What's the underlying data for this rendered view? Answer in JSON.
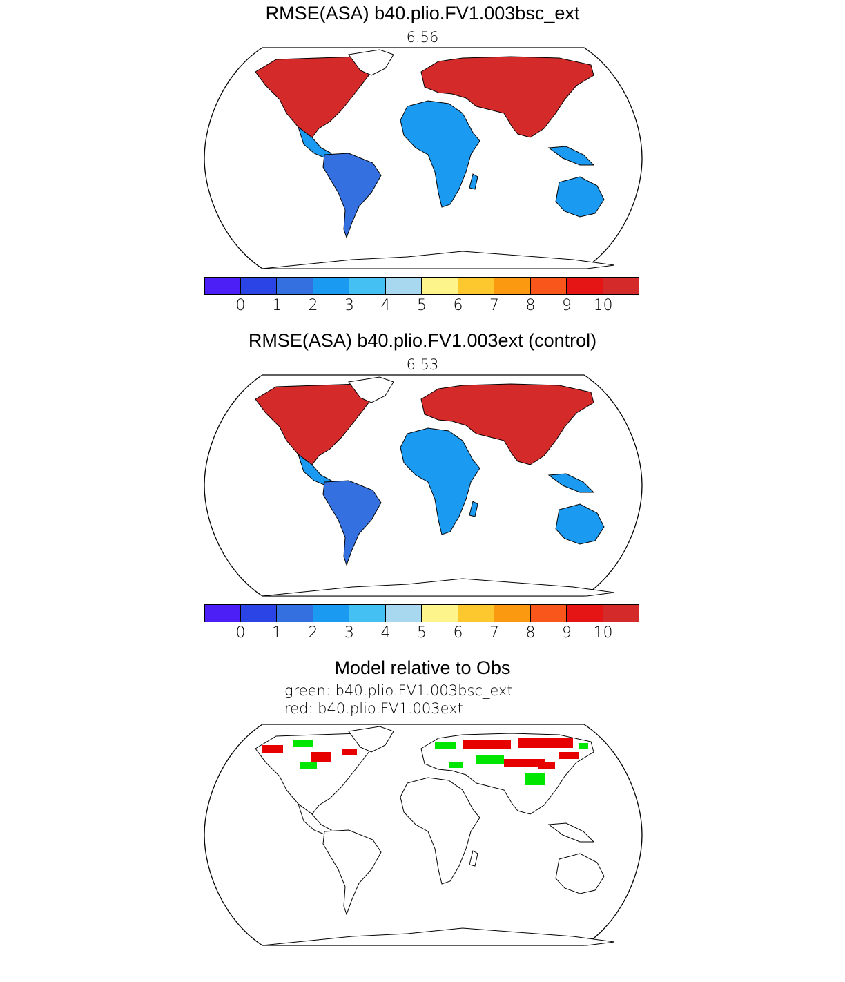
{
  "panels": [
    {
      "title": "RMSE(ASA) b40.plio.FV1.003bsc_ext",
      "value": "6.56"
    },
    {
      "title": "RMSE(ASA) b40.plio.FV1.003ext (control)",
      "value": "6.53"
    }
  ],
  "comparison": {
    "title": "Model relative to Obs",
    "green_label": "green: b40.plio.FV1.003bsc_ext",
    "red_label": "red: b40.plio.FV1.003ext",
    "colors": {
      "green": "#00e600",
      "red": "#e60000"
    }
  },
  "colorbar": {
    "colors": [
      "#4b1ff5",
      "#2a44e6",
      "#3470e0",
      "#1a9af0",
      "#44c0f2",
      "#a8d8ef",
      "#fdf58c",
      "#fdc82e",
      "#fb9a10",
      "#f8561a",
      "#e61515",
      "#d42a2a"
    ],
    "tick_labels": [
      "0",
      "1",
      "2",
      "3",
      "4",
      "5",
      "6",
      "7",
      "8",
      "9",
      "10"
    ]
  },
  "map_colors": {
    "land_low": "#3470e0",
    "land_mid": "#1a9af0",
    "land_high": "#d42a2a",
    "coast": "#000000",
    "outline": "#000000"
  }
}
